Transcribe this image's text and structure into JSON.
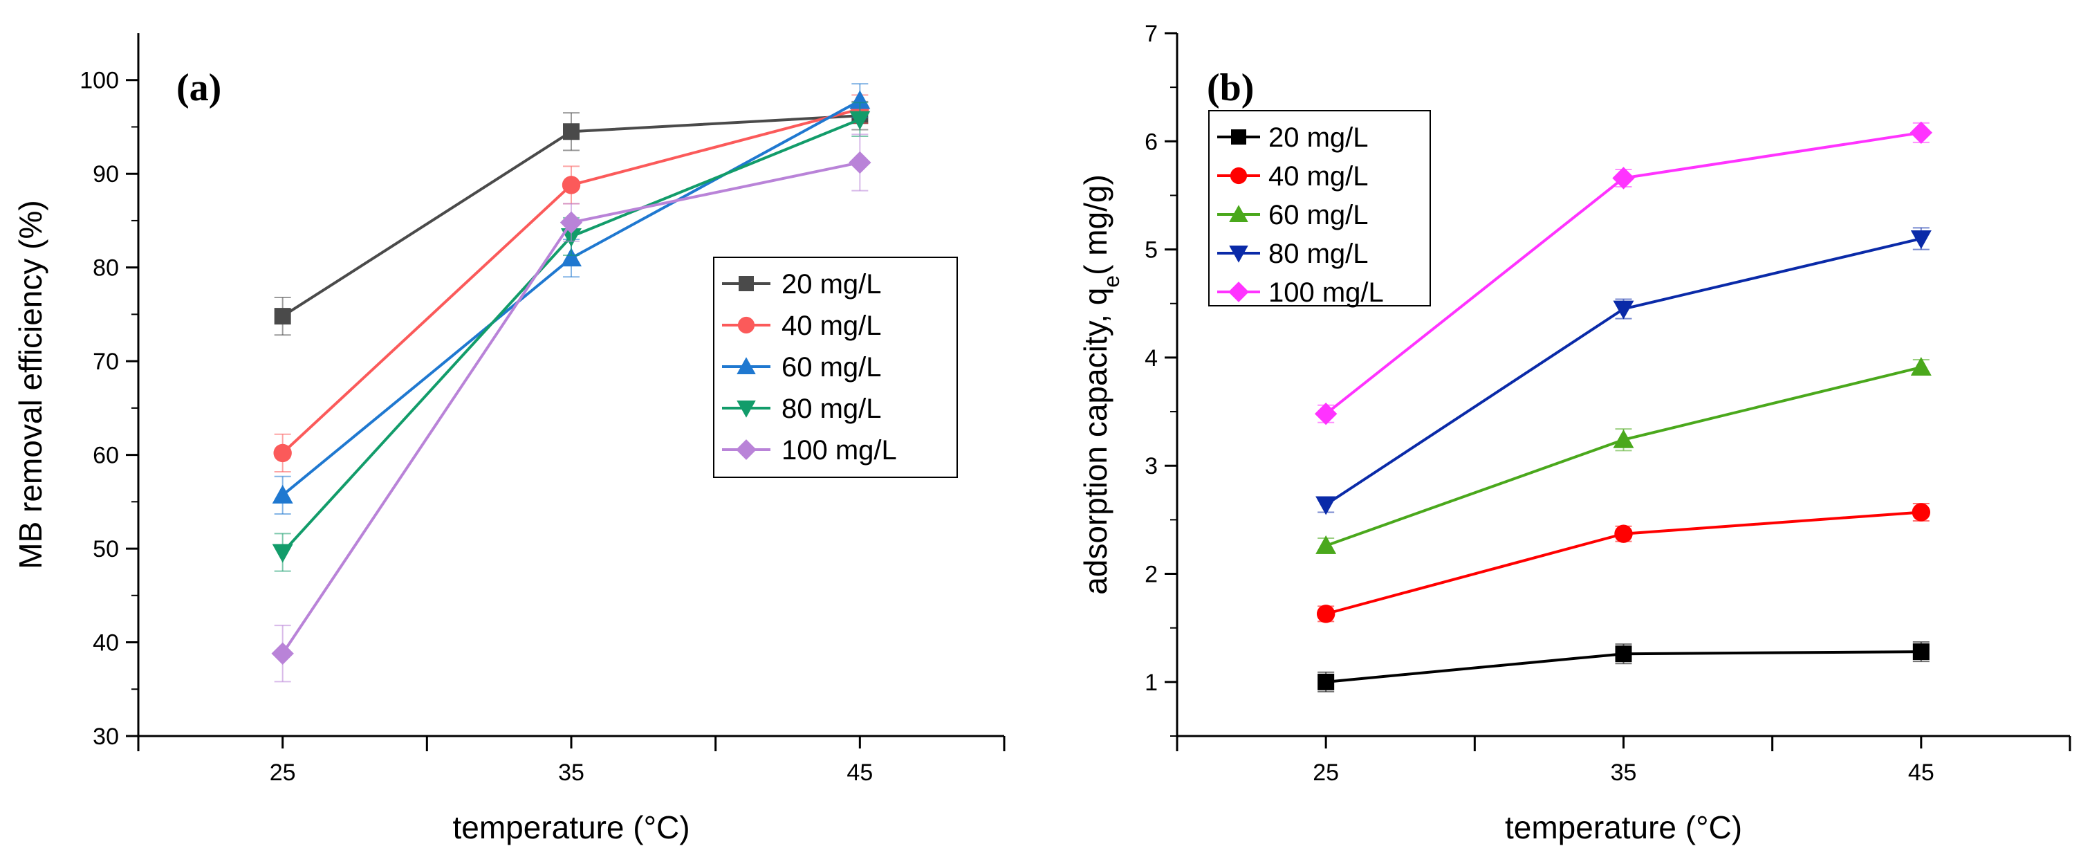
{
  "chart_data": [
    {
      "type": "line",
      "panel_label": "(a)",
      "xlabel": "temperature (°C)",
      "ylabel": "MB removal efficiency  (%)",
      "xlim": [
        20,
        50
      ],
      "ylim": [
        30,
        105
      ],
      "x_ticks": [
        25,
        35,
        45
      ],
      "y_ticks": [
        30,
        40,
        50,
        60,
        70,
        80,
        90,
        100
      ],
      "legend_position": "center-right",
      "x": [
        25,
        35,
        45
      ],
      "series": [
        {
          "name": "20 mg/L",
          "color": "#4a4a4a",
          "marker": "square",
          "values": [
            74.8,
            94.5,
            96.2
          ],
          "errors": [
            2.0,
            2.0,
            1.5
          ]
        },
        {
          "name": "40 mg/L",
          "color": "#fb5a5a",
          "marker": "circle",
          "values": [
            60.2,
            88.8,
            96.9
          ],
          "errors": [
            2.0,
            2.0,
            1.5
          ]
        },
        {
          "name": "60 mg/L",
          "color": "#1f78d0",
          "marker": "triangle-up",
          "values": [
            55.7,
            81.0,
            97.8
          ],
          "errors": [
            2.0,
            2.0,
            1.8
          ]
        },
        {
          "name": "80 mg/L",
          "color": "#129c6a",
          "marker": "triangle-down",
          "values": [
            49.6,
            83.3,
            95.8
          ],
          "errors": [
            2.0,
            2.0,
            1.8
          ]
        },
        {
          "name": "100 mg/L",
          "color": "#b983d8",
          "marker": "diamond",
          "values": [
            38.8,
            84.8,
            91.2
          ],
          "errors": [
            3.0,
            2.0,
            3.0
          ]
        }
      ]
    },
    {
      "type": "line",
      "panel_label": "(b)",
      "xlabel": "temperature (°C)",
      "ylabel_main": "adsorption capacity, q",
      "ylabel_sub": "e",
      "ylabel_tail": "( mg/g)",
      "xlim": [
        20,
        50
      ],
      "ylim": [
        0.5,
        7
      ],
      "x_ticks": [
        25,
        35,
        45
      ],
      "y_ticks": [
        1,
        2,
        3,
        4,
        5,
        6,
        7
      ],
      "legend_position": "top-left",
      "x": [
        25,
        35,
        45
      ],
      "series": [
        {
          "name": "20 mg/L",
          "color": "#000000",
          "marker": "square",
          "values": [
            1.0,
            1.26,
            1.28
          ],
          "errors": [
            0.09,
            0.09,
            0.09
          ]
        },
        {
          "name": "40 mg/L",
          "color": "#ff0000",
          "marker": "circle",
          "values": [
            1.63,
            2.37,
            2.57
          ],
          "errors": [
            0.07,
            0.07,
            0.08
          ]
        },
        {
          "name": "60 mg/L",
          "color": "#4aa81c",
          "marker": "triangle-up",
          "values": [
            2.26,
            3.24,
            3.91
          ],
          "errors": [
            0.07,
            0.1,
            0.07
          ]
        },
        {
          "name": "80 mg/L",
          "color": "#0a2aa8",
          "marker": "triangle-down",
          "values": [
            2.64,
            4.45,
            5.1
          ],
          "errors": [
            0.07,
            0.09,
            0.1
          ]
        },
        {
          "name": "100 mg/L",
          "color": "#ff33ff",
          "marker": "diamond",
          "values": [
            3.48,
            5.66,
            6.08
          ],
          "errors": [
            0.08,
            0.08,
            0.09
          ]
        }
      ]
    }
  ]
}
